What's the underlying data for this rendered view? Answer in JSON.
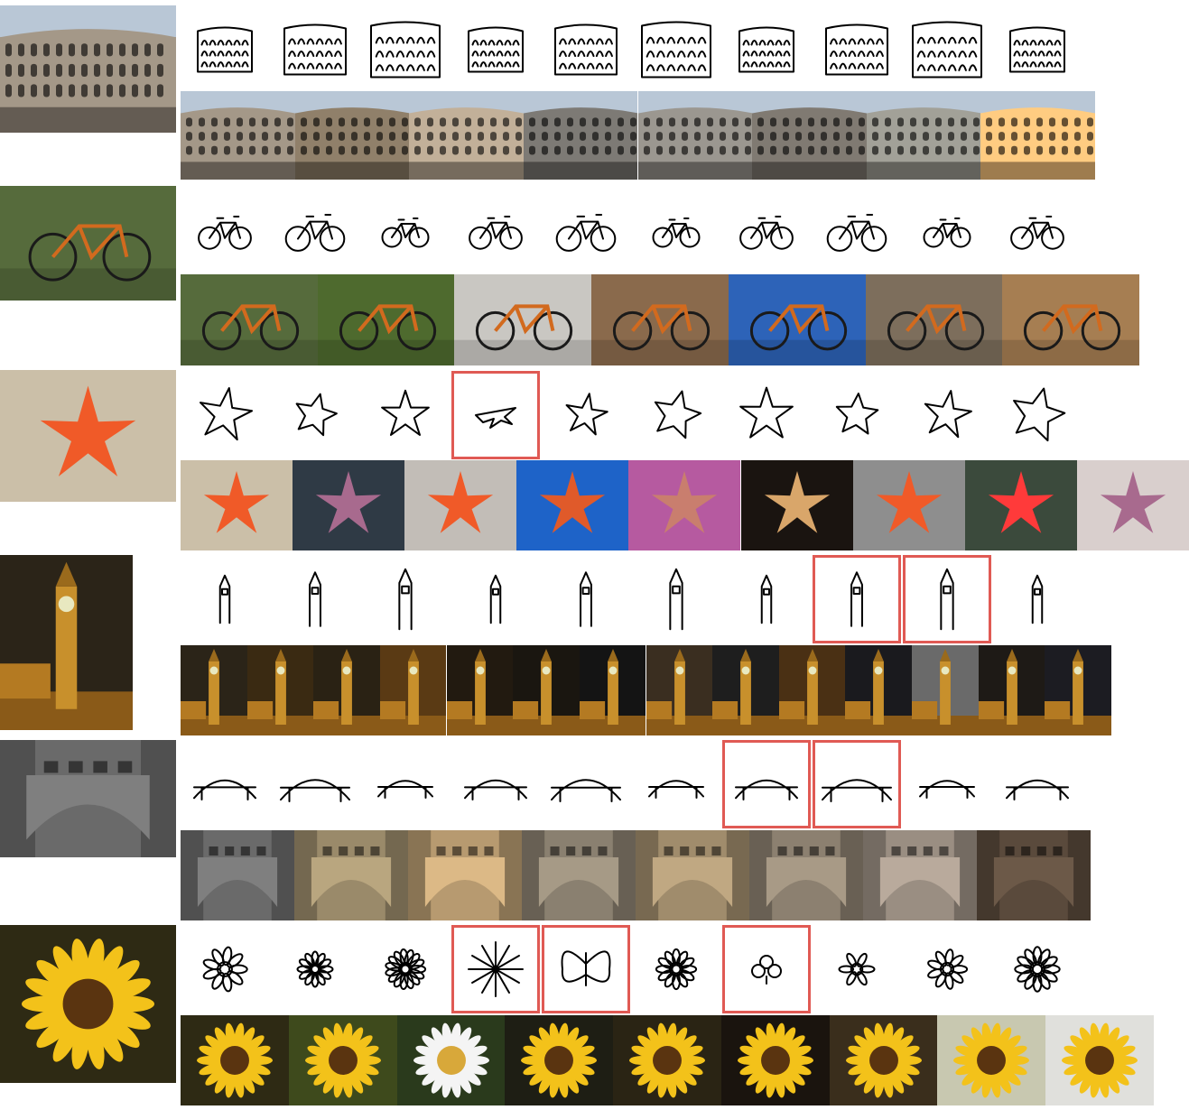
{
  "figure": {
    "highlight_color": "#e05a54",
    "rows": [
      {
        "subject": "colosseum",
        "query_photo": "colosseum-photo",
        "sketches": [
          {
            "icon": "colosseum-sketch",
            "highlighted": false
          },
          {
            "icon": "colosseum-sketch",
            "highlighted": false
          },
          {
            "icon": "colosseum-sketch",
            "highlighted": false
          },
          {
            "icon": "colosseum-sketch",
            "highlighted": false
          },
          {
            "icon": "colosseum-sketch",
            "highlighted": false
          },
          {
            "icon": "colosseum-sketch",
            "highlighted": false
          },
          {
            "icon": "colosseum-sketch",
            "highlighted": false
          },
          {
            "icon": "colosseum-sketch",
            "highlighted": false
          },
          {
            "icon": "colosseum-sketch",
            "highlighted": false
          },
          {
            "icon": "colosseum-sketch",
            "highlighted": false
          }
        ],
        "photo_count": 8,
        "photo_colors": [
          "#8f8476",
          "#7d6f5c",
          "#a99985",
          "#6d6a66",
          "#87837d",
          "#6f6a63",
          "#8d8c84",
          "#e2b170"
        ]
      },
      {
        "subject": "bicycle",
        "query_photo": "bicycle-photo",
        "sketches": [
          {
            "icon": "bicycle-sketch",
            "highlighted": false
          },
          {
            "icon": "bicycle-sketch",
            "highlighted": false
          },
          {
            "icon": "bicycle-sketch",
            "highlighted": false
          },
          {
            "icon": "bicycle-sketch",
            "highlighted": false
          },
          {
            "icon": "bicycle-sketch",
            "highlighted": false
          },
          {
            "icon": "bicycle-sketch",
            "highlighted": false
          },
          {
            "icon": "bicycle-sketch",
            "highlighted": false
          },
          {
            "icon": "bicycle-sketch",
            "highlighted": false
          },
          {
            "icon": "bicycle-sketch",
            "highlighted": false
          },
          {
            "icon": "bicycle-sketch",
            "highlighted": false
          }
        ],
        "photo_count": 7,
        "photo_colors": [
          "#566b3c",
          "#4e6a2e",
          "#c9c7c2",
          "#8a6a4c",
          "#2d63b8",
          "#7d6e5c",
          "#a67e52"
        ]
      },
      {
        "subject": "starfish",
        "query_photo": "starfish-photo",
        "sketches": [
          {
            "icon": "star-sketch",
            "highlighted": false
          },
          {
            "icon": "star-sketch",
            "highlighted": false
          },
          {
            "icon": "star-sketch",
            "highlighted": false
          },
          {
            "icon": "airplane-sketch",
            "highlighted": true
          },
          {
            "icon": "star-sketch",
            "highlighted": false
          },
          {
            "icon": "star-sketch",
            "highlighted": false
          },
          {
            "icon": "star-sketch",
            "highlighted": false
          },
          {
            "icon": "star-sketch",
            "highlighted": false
          },
          {
            "icon": "star-sketch",
            "highlighted": false
          },
          {
            "icon": "star-sketch",
            "highlighted": false
          }
        ],
        "photo_count": 9,
        "photo_colors": [
          "#cbbfa8",
          "#2f3a45",
          "#c2bdb7",
          "#1e63c8",
          "#b65aa0",
          "#1a1410",
          "#8e8e8e",
          "#3b4a3c",
          "#d9cfcd"
        ]
      },
      {
        "subject": "clock tower",
        "query_photo": "clock-tower-photo",
        "sketches": [
          {
            "icon": "tower-sketch",
            "highlighted": false
          },
          {
            "icon": "tower-sketch",
            "highlighted": false
          },
          {
            "icon": "tower-sketch",
            "highlighted": false
          },
          {
            "icon": "tower-sketch",
            "highlighted": false
          },
          {
            "icon": "tower-sketch",
            "highlighted": false
          },
          {
            "icon": "tower-sketch",
            "highlighted": false
          },
          {
            "icon": "tower-sketch",
            "highlighted": false
          },
          {
            "icon": "tower-sketch",
            "highlighted": true
          },
          {
            "icon": "tower-sketch",
            "highlighted": true
          },
          {
            "icon": "tower-sketch",
            "highlighted": false
          }
        ],
        "photo_count": 14,
        "photo_colors": [
          "#2b2418",
          "#3a2a12",
          "#2a2214",
          "#5a3a14",
          "#221a10",
          "#1a1610",
          "#141414",
          "#3a2e20",
          "#1e1e1e",
          "#4a3014",
          "#1a1a1e",
          "#6a6a6a",
          "#1e1a16",
          "#1c1c22"
        ]
      },
      {
        "subject": "bridge",
        "query_photo": "bridge-photo",
        "sketches": [
          {
            "icon": "bridge-sketch",
            "highlighted": false
          },
          {
            "icon": "bridge-sketch",
            "highlighted": false
          },
          {
            "icon": "bridge-sketch",
            "highlighted": false
          },
          {
            "icon": "bridge-sketch",
            "highlighted": false
          },
          {
            "icon": "bridge-sketch",
            "highlighted": false
          },
          {
            "icon": "bridge-sketch",
            "highlighted": false
          },
          {
            "icon": "bridge-sketch",
            "highlighted": true
          },
          {
            "icon": "bridge-sketch",
            "highlighted": true
          },
          {
            "icon": "bridge-sketch",
            "highlighted": false
          },
          {
            "icon": "bridge-sketch",
            "highlighted": false
          }
        ],
        "photo_count": 8,
        "photo_colors": [
          "#6a6a6a",
          "#9a8a6a",
          "#b79a70",
          "#8a8070",
          "#a08c6c",
          "#8c8070",
          "#9a8e82",
          "#5a4a3c"
        ]
      },
      {
        "subject": "sunflower",
        "query_photo": "sunflower-photo",
        "sketches": [
          {
            "icon": "flower-sketch",
            "highlighted": false
          },
          {
            "icon": "flower-sketch",
            "highlighted": false
          },
          {
            "icon": "flower-sketch",
            "highlighted": false
          },
          {
            "icon": "burst-sketch",
            "highlighted": true
          },
          {
            "icon": "butterfly-sketch",
            "highlighted": true
          },
          {
            "icon": "flower-sketch",
            "highlighted": false
          },
          {
            "icon": "clover-sketch",
            "highlighted": true
          },
          {
            "icon": "flower-sketch",
            "highlighted": false
          },
          {
            "icon": "flower-sketch",
            "highlighted": false
          },
          {
            "icon": "flower-sketch",
            "highlighted": false
          }
        ],
        "photo_count": 9,
        "photo_colors": [
          "#2e2a14",
          "#3e4a1c",
          "#2a3a1c",
          "#1e1e14",
          "#2a2414",
          "#1a140e",
          "#3a2e1c",
          "#c8c8b0",
          "#e0e0dc"
        ]
      }
    ]
  }
}
